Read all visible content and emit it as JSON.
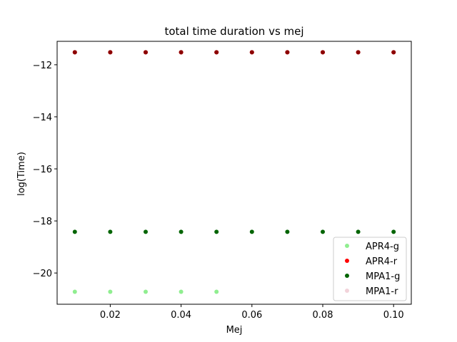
{
  "chart_data": {
    "type": "scatter",
    "title": "total time duration vs mej",
    "xlabel": "Mej",
    "ylabel": "log(Time)",
    "xlim": [
      0.005,
      0.105
    ],
    "ylim": [
      -21.2,
      -11.1
    ],
    "xticks": [
      0.02,
      0.04,
      0.06,
      0.08,
      0.1
    ],
    "xtick_labels": [
      "0.02",
      "0.04",
      "0.06",
      "0.08",
      "0.10"
    ],
    "yticks": [
      -12,
      -14,
      -16,
      -18,
      -20
    ],
    "ytick_labels": [
      "−12",
      "−14",
      "−16",
      "−18",
      "−20"
    ],
    "grid": false,
    "legend_position": "lower-right",
    "series": [
      {
        "name": "APR4-g",
        "color": "#90ee90",
        "x": [
          0.01,
          0.02,
          0.03,
          0.04,
          0.05
        ],
        "y": [
          -20.72,
          -20.72,
          -20.72,
          -20.72,
          -20.72
        ]
      },
      {
        "name": "APR4-r",
        "color": "#ff0000",
        "x": [
          0.01,
          0.02,
          0.03,
          0.04,
          0.05,
          0.06,
          0.07,
          0.08,
          0.09,
          0.1
        ],
        "y": [
          -11.52,
          -11.52,
          -11.52,
          -11.52,
          -11.52,
          -11.52,
          -11.52,
          -11.52,
          -11.52,
          -11.52
        ]
      },
      {
        "name": "MPA1-g",
        "color": "#006400",
        "x": [
          0.01,
          0.02,
          0.03,
          0.04,
          0.05,
          0.06,
          0.07,
          0.08,
          0.09,
          0.1
        ],
        "y": [
          -18.42,
          -18.42,
          -18.42,
          -18.42,
          -18.42,
          -18.42,
          -18.42,
          -18.42,
          -18.42,
          -18.42
        ]
      },
      {
        "name": "MPA1-r",
        "color": "#8b0000",
        "legend_color": "#f2d3da",
        "x": [
          0.01,
          0.02,
          0.03,
          0.04,
          0.05,
          0.06,
          0.07,
          0.08,
          0.09,
          0.1
        ],
        "y": [
          -11.52,
          -11.52,
          -11.52,
          -11.52,
          -11.52,
          -11.52,
          -11.52,
          -11.52,
          -11.52,
          -11.52
        ]
      }
    ]
  }
}
